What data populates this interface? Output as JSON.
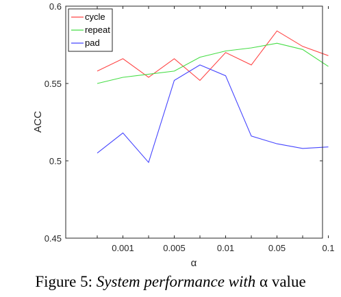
{
  "chart_data": {
    "type": "line",
    "xlabel": "α",
    "ylabel": "ACC",
    "categories": [
      "",
      "0.001",
      "",
      "0.005",
      "",
      "0.01",
      "",
      "0.05",
      "",
      "0.1"
    ],
    "ylim": [
      0.45,
      0.6
    ],
    "yticks": [
      "0.45",
      "0.5",
      "0.55",
      "0.6"
    ],
    "grid": false,
    "legend_position": "top-left",
    "series": [
      {
        "name": "cycle",
        "color": "#ff4444",
        "values": [
          0.558,
          0.566,
          0.554,
          0.566,
          0.552,
          0.57,
          0.562,
          0.584,
          0.574,
          0.568
        ]
      },
      {
        "name": "repeat",
        "color": "#44dd44",
        "values": [
          0.55,
          0.554,
          0.556,
          0.558,
          0.567,
          0.571,
          0.573,
          0.576,
          0.572,
          0.561
        ]
      },
      {
        "name": "pad",
        "color": "#4444ff",
        "values": [
          0.505,
          0.518,
          0.499,
          0.552,
          0.562,
          0.555,
          0.516,
          0.511,
          0.508,
          0.509
        ]
      }
    ]
  },
  "caption": {
    "prefix": "Figure 5: ",
    "italic": "System performance with",
    "suffix": " α value"
  }
}
